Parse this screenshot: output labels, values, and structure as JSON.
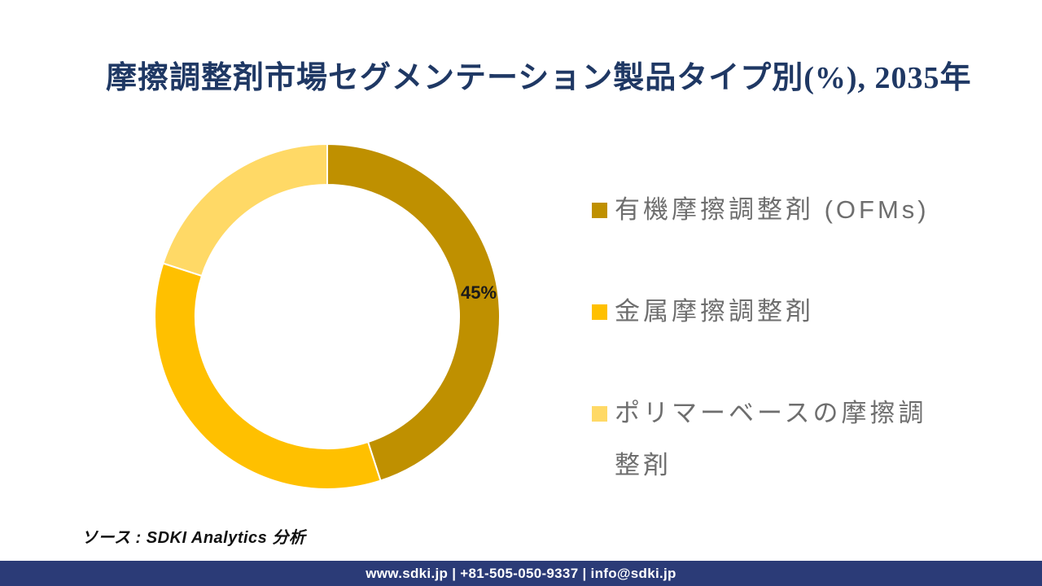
{
  "title": {
    "text": "摩擦調整剤市場セグメンテーション製品タイプ別(%), 2035年",
    "color": "#1F3864"
  },
  "chart_data": {
    "type": "pie",
    "subtype": "donut",
    "title": "摩擦調整剤市場セグメンテーション製品タイプ別(%), 2035年",
    "unit": "%",
    "year": "2035",
    "categories": [
      "有機摩擦調整剤 (OFMs)",
      "金属摩擦調整剤",
      "ポリマーベースの摩擦調整剤"
    ],
    "values": [
      45,
      35,
      20
    ],
    "colors": [
      "#BF9000",
      "#FFC000",
      "#FFD966"
    ],
    "data_labels": [
      "45%",
      "",
      ""
    ],
    "start_angle_deg": 0,
    "direction": "clockwise",
    "inner_radius_ratio": 0.765,
    "separator_color": "#FFFFFF",
    "legend_position": "right"
  },
  "legend": {
    "text_color": "#6E6E6E",
    "items": [
      {
        "label": "有機摩擦調整剤 (OFMs)",
        "swatch_color": "#BF9000"
      },
      {
        "label": "金属摩擦調整剤",
        "swatch_color": "#FFC000"
      },
      {
        "label": "ポリマーベースの摩擦調\n整剤",
        "swatch_color": "#FFD966"
      }
    ]
  },
  "donut_label": {
    "text": "45%"
  },
  "source": {
    "text": "ソース : SDKI Analytics 分析"
  },
  "footer": {
    "text": "www.sdki.jp | +81-505-050-9337 | info@sdki.jp",
    "background": "#2B3B77",
    "text_color": "#FFFFFF"
  }
}
